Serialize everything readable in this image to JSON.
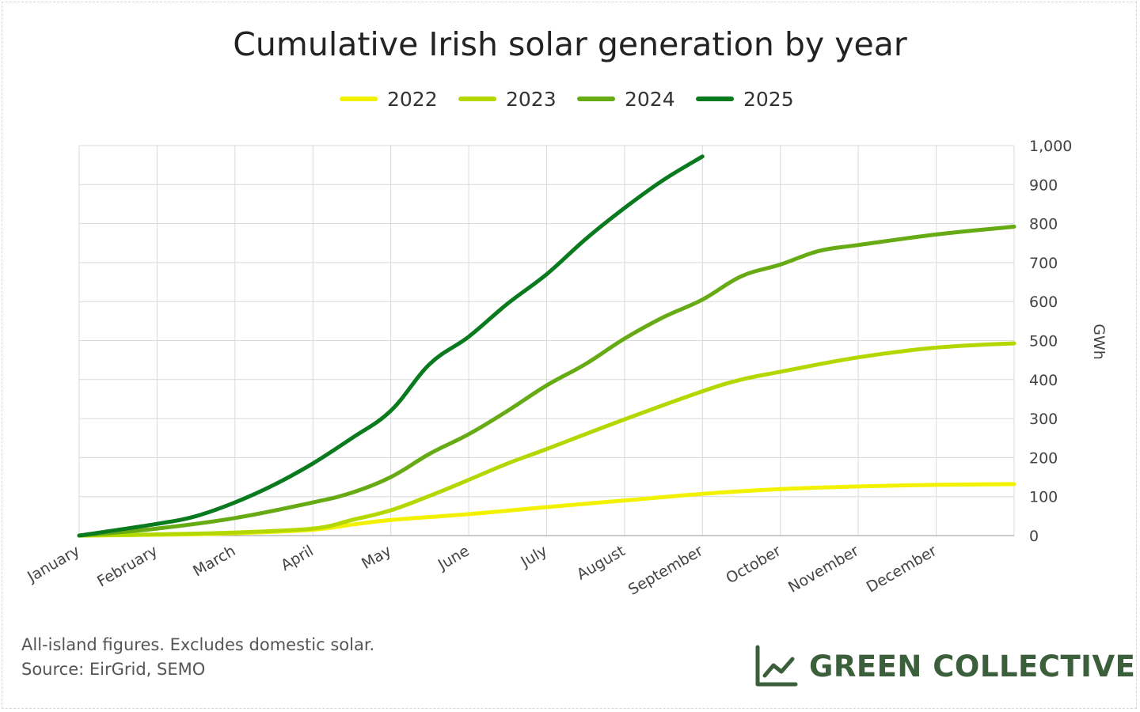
{
  "footnote": {
    "line1": "All-island figures. Excludes domestic solar.",
    "line2": "Source: EirGrid, SEMO"
  },
  "brand": {
    "name": "GREEN COLLECTIVE",
    "icon": "line-chart-icon",
    "color": "#3b5e3b"
  },
  "chart_data": {
    "type": "line",
    "title": "Cumulative Irish solar generation by year",
    "xlabel": "",
    "ylabel": "GWh",
    "ylim": [
      0,
      1000
    ],
    "yticks": [
      0,
      100,
      200,
      300,
      400,
      500,
      600,
      700,
      800,
      900,
      1000
    ],
    "ytick_labels": [
      "0",
      "100",
      "200",
      "300",
      "400",
      "500",
      "600",
      "700",
      "800",
      "900",
      "1,000"
    ],
    "y_axis_side": "right",
    "x_unit": "month (0 = 1 January, 12 = 31 December)",
    "xlim": [
      0,
      12
    ],
    "month_labels": [
      "January",
      "February",
      "March",
      "April",
      "May",
      "June",
      "July",
      "August",
      "September",
      "October",
      "November",
      "December"
    ],
    "grid": true,
    "legend_position": "top-center",
    "series": [
      {
        "name": "2022",
        "color": "#f2f200",
        "x": [
          0,
          1,
          2,
          3,
          3.5,
          4,
          5,
          6,
          7,
          8,
          9,
          10,
          11,
          12
        ],
        "y": [
          0,
          2,
          6,
          15,
          28,
          40,
          55,
          73,
          90,
          107,
          119,
          126,
          130,
          132
        ]
      },
      {
        "name": "2023",
        "color": "#b3d800",
        "x": [
          0,
          1,
          2,
          3,
          3.5,
          4,
          4.5,
          5,
          5.5,
          6,
          7,
          8,
          8.5,
          9,
          10,
          11,
          12
        ],
        "y": [
          0,
          3,
          8,
          18,
          40,
          65,
          102,
          143,
          185,
          222,
          298,
          370,
          400,
          420,
          457,
          482,
          493
        ]
      },
      {
        "name": "2024",
        "color": "#66aa14",
        "x": [
          0,
          1,
          2,
          3,
          3.5,
          4,
          4.5,
          5,
          5.5,
          6,
          6.5,
          7,
          7.5,
          8,
          8.5,
          9,
          9.5,
          10,
          11,
          12
        ],
        "y": [
          0,
          18,
          45,
          85,
          110,
          150,
          210,
          260,
          320,
          385,
          440,
          505,
          560,
          605,
          665,
          695,
          730,
          745,
          772,
          792
        ]
      },
      {
        "name": "2025",
        "color": "#0a7a1e",
        "x": [
          0,
          1,
          1.5,
          2,
          2.5,
          3,
          3.5,
          4,
          4.5,
          5,
          5.5,
          6,
          6.5,
          7,
          7.5,
          8
        ],
        "y": [
          0,
          30,
          50,
          85,
          130,
          185,
          250,
          320,
          440,
          510,
          595,
          670,
          760,
          840,
          912,
          972
        ]
      }
    ]
  }
}
